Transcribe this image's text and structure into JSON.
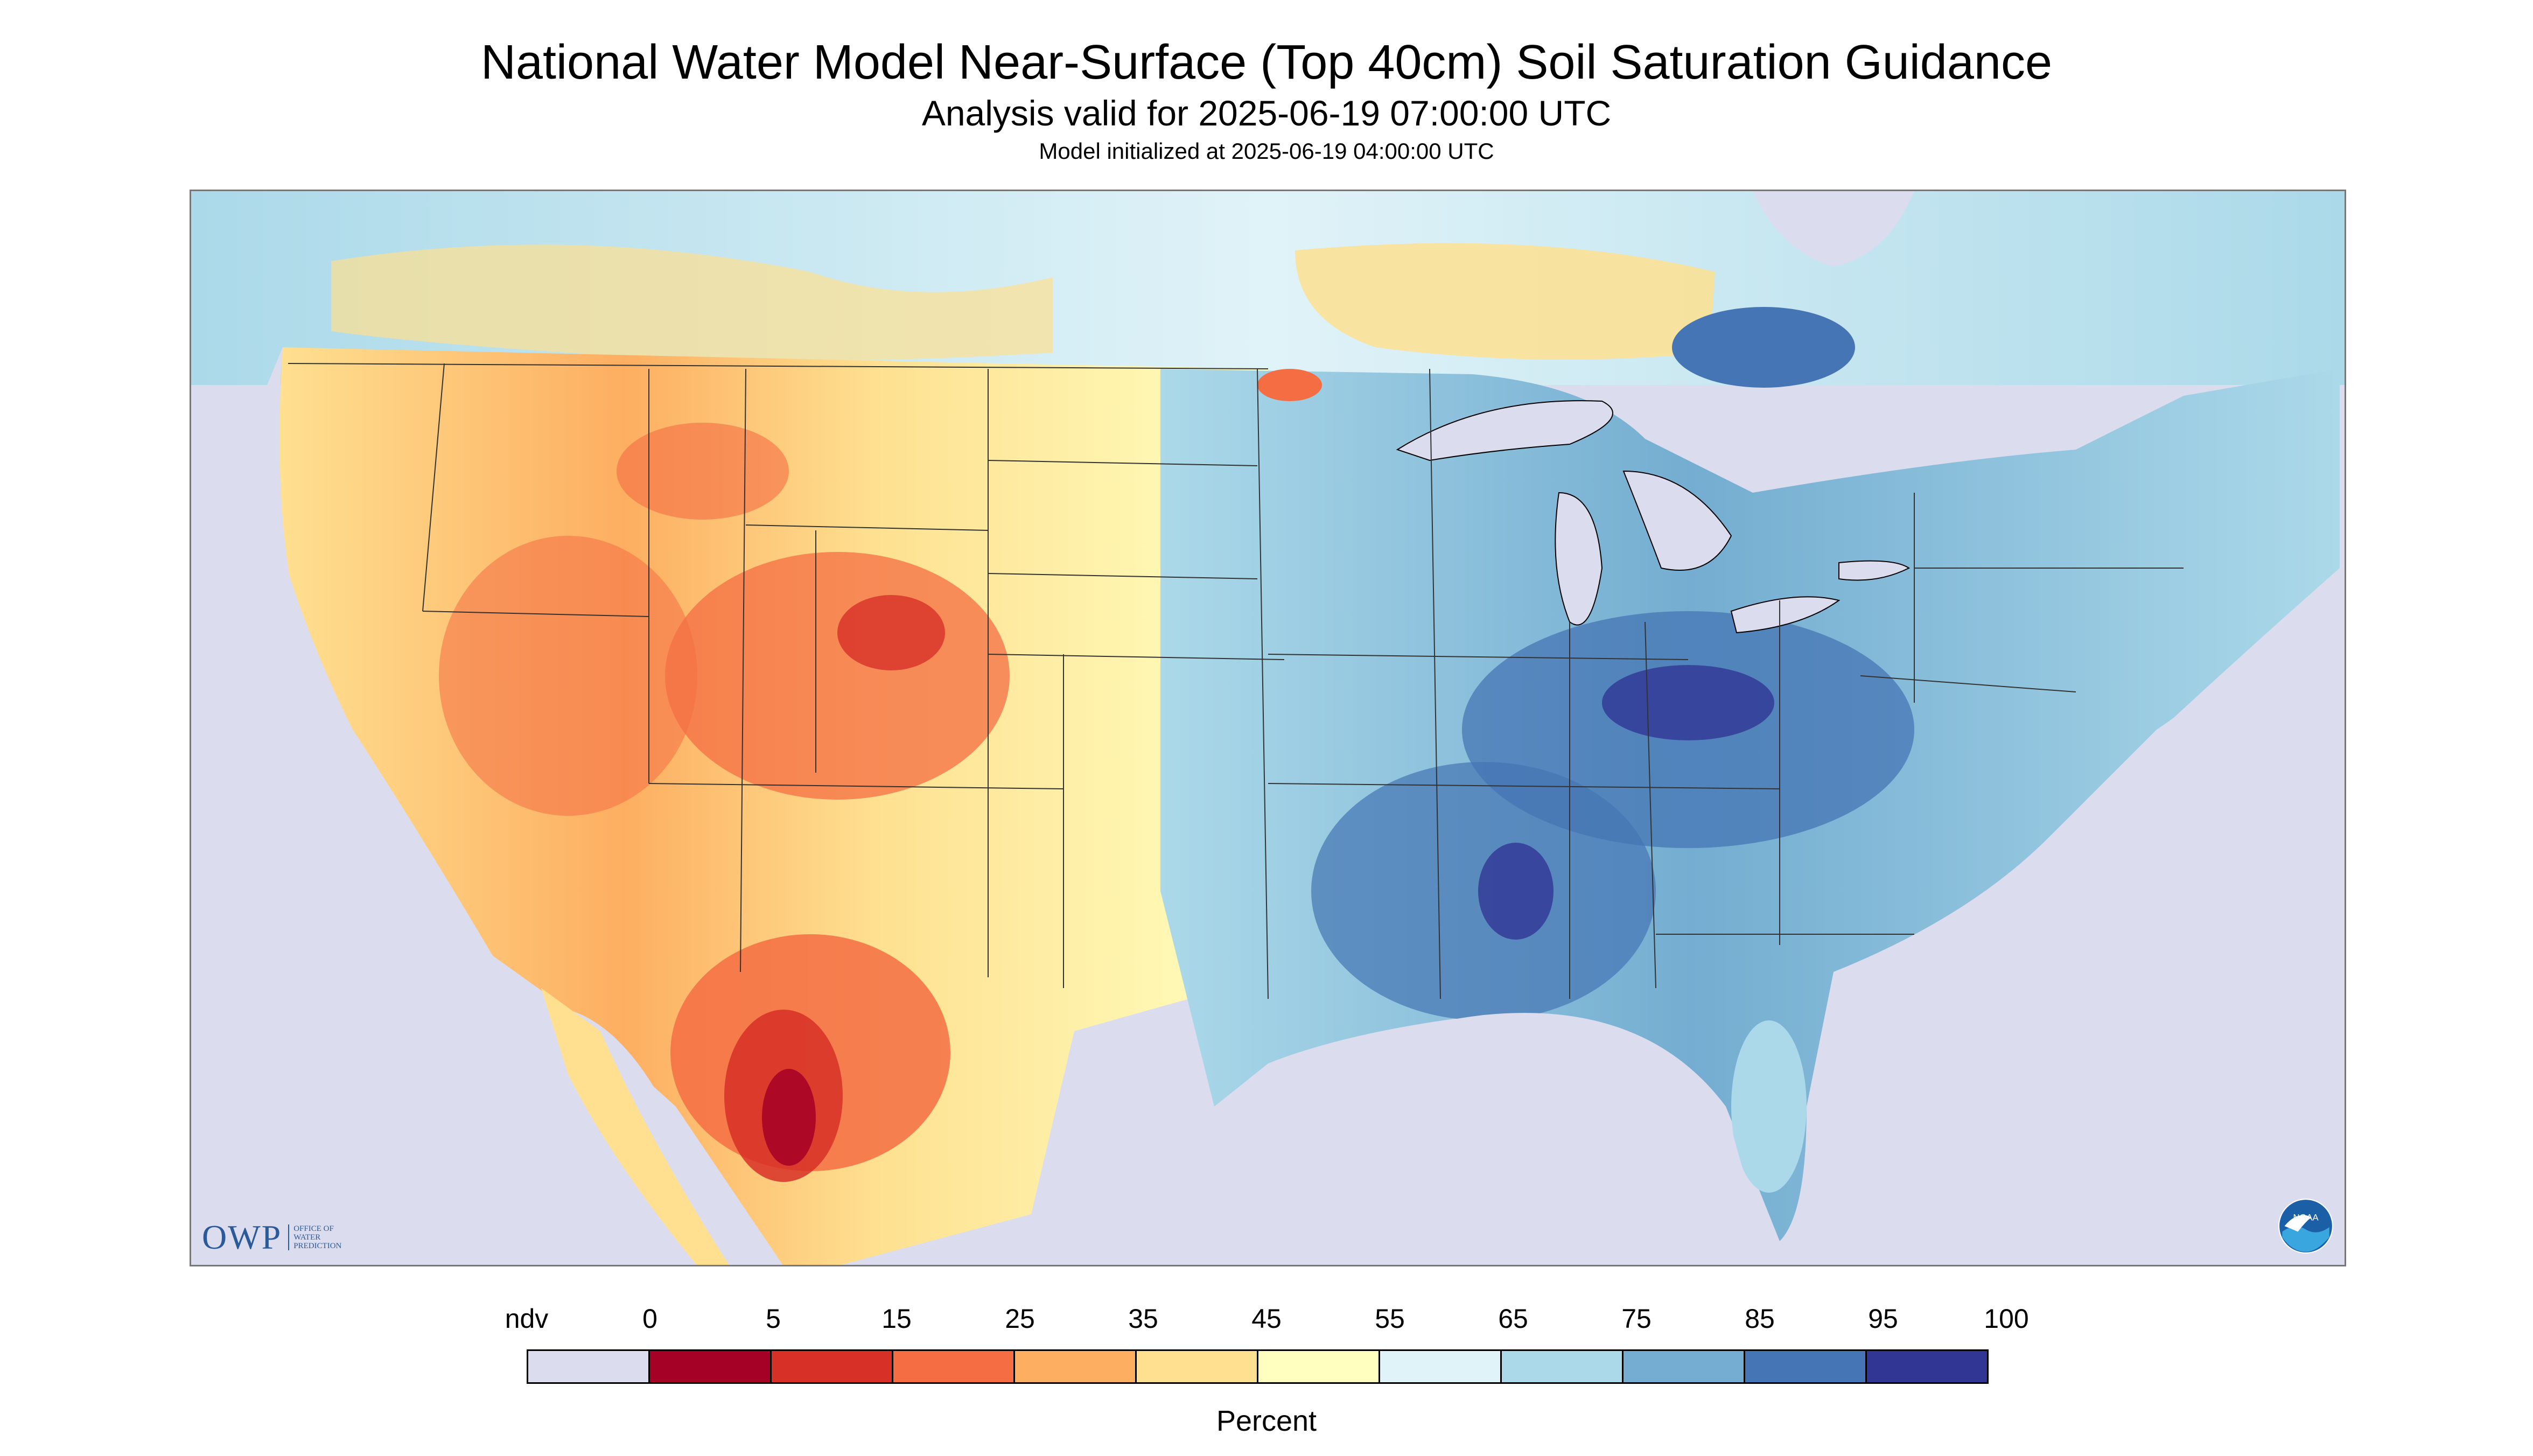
{
  "header": {
    "title": "National Water Model Near-Surface (Top 40cm) Soil Saturation Guidance",
    "subtitle": "Analysis valid for 2025-06-19 07:00:00 UTC",
    "init": "Model initialized at 2025-06-19 04:00:00 UTC"
  },
  "map": {
    "region": "CONUS",
    "variable": "near-surface soil saturation",
    "ndv_color": "#dcdcef",
    "water_color": "#dcdcef",
    "logo_owp": {
      "main": "OWP",
      "sub_lines": [
        "OFFICE OF",
        "WATER",
        "PREDICTION"
      ]
    },
    "logo_noaa": {
      "text": "NOAA"
    }
  },
  "legend": {
    "labels": [
      "ndv",
      "0",
      "5",
      "15",
      "25",
      "35",
      "45",
      "55",
      "65",
      "75",
      "85",
      "95",
      "100"
    ],
    "colors": [
      "#dcdcef",
      "#a50026",
      "#d73027",
      "#f46d43",
      "#fdae61",
      "#fee090",
      "#ffffbf",
      "#e0f3f8",
      "#abd9e9",
      "#74add1",
      "#4575b4",
      "#313695"
    ],
    "units": "Percent"
  }
}
